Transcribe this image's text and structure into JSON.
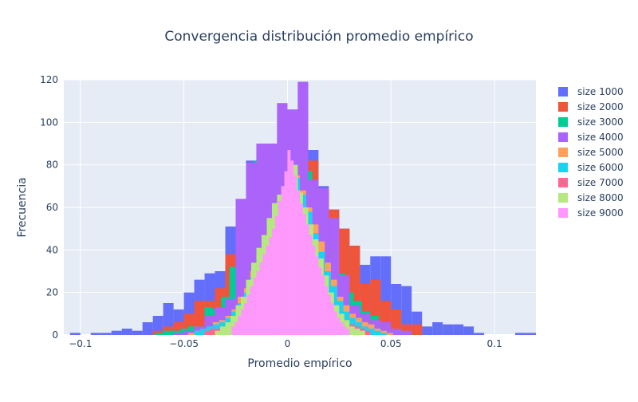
{
  "chart_data": {
    "type": "bar",
    "title": "Convergencia distribución promedio empírico",
    "xlabel": "Promedio empírico",
    "ylabel": "Frecuencia",
    "xlim": [
      -0.108,
      0.12
    ],
    "ylim": [
      0,
      120
    ],
    "x_ticks": [
      -0.1,
      -0.05,
      0,
      0.05,
      0.1
    ],
    "x_tick_labels": [
      "−0.1",
      "−0.05",
      "0",
      "0.05",
      "0.1"
    ],
    "y_ticks": [
      0,
      20,
      40,
      60,
      80,
      100,
      120
    ],
    "grid": true,
    "legend_position": "top-right",
    "bar_mode": "overlay",
    "series": [
      {
        "name": "size 1000",
        "color": "#636efa",
        "bin_width": 0.005,
        "bins": [
          [
            -0.105,
            1
          ],
          [
            -0.1,
            0
          ],
          [
            -0.095,
            1
          ],
          [
            -0.09,
            1
          ],
          [
            -0.085,
            2
          ],
          [
            -0.08,
            3
          ],
          [
            -0.075,
            2
          ],
          [
            -0.07,
            6
          ],
          [
            -0.065,
            9
          ],
          [
            -0.06,
            15
          ],
          [
            -0.055,
            12
          ],
          [
            -0.05,
            20
          ],
          [
            -0.045,
            26
          ],
          [
            -0.04,
            29
          ],
          [
            -0.035,
            30
          ],
          [
            -0.03,
            51
          ],
          [
            -0.025,
            62
          ],
          [
            -0.02,
            82
          ],
          [
            -0.015,
            90
          ],
          [
            -0.01,
            90
          ],
          [
            -0.005,
            109
          ],
          [
            0,
            106
          ],
          [
            0.005,
            119
          ],
          [
            0.01,
            87
          ],
          [
            0.015,
            70
          ],
          [
            0.02,
            59
          ],
          [
            0.025,
            50
          ],
          [
            0.03,
            42
          ],
          [
            0.035,
            33
          ],
          [
            0.04,
            37
          ],
          [
            0.045,
            37
          ],
          [
            0.05,
            24
          ],
          [
            0.055,
            23
          ],
          [
            0.06,
            11
          ],
          [
            0.065,
            4
          ],
          [
            0.07,
            6
          ],
          [
            0.075,
            5
          ],
          [
            0.08,
            5
          ],
          [
            0.085,
            4
          ],
          [
            0.09,
            1
          ],
          [
            0.095,
            0
          ],
          [
            0.1,
            0
          ],
          [
            0.105,
            0
          ],
          [
            0.11,
            1
          ],
          [
            0.115,
            1
          ]
        ]
      },
      {
        "name": "size 2000",
        "color": "#ef553b",
        "bin_width": 0.005,
        "bins": [
          [
            -0.065,
            2
          ],
          [
            -0.06,
            4
          ],
          [
            -0.055,
            6
          ],
          [
            -0.05,
            10
          ],
          [
            -0.045,
            16
          ],
          [
            -0.04,
            16
          ],
          [
            -0.035,
            22
          ],
          [
            -0.03,
            38
          ],
          [
            -0.025,
            56
          ],
          [
            -0.02,
            79
          ],
          [
            -0.015,
            88
          ],
          [
            -0.01,
            90
          ],
          [
            -0.005,
            103
          ],
          [
            0,
            105
          ],
          [
            0.005,
            103
          ],
          [
            0.01,
            82
          ],
          [
            0.015,
            68
          ],
          [
            0.02,
            59
          ],
          [
            0.025,
            50
          ],
          [
            0.03,
            42
          ],
          [
            0.035,
            24
          ],
          [
            0.04,
            26
          ],
          [
            0.045,
            16
          ],
          [
            0.05,
            12
          ],
          [
            0.055,
            5
          ],
          [
            0.06,
            5
          ]
        ]
      },
      {
        "name": "size 3000",
        "color": "#00cc96",
        "bin_width": 0.004,
        "bins": [
          [
            -0.064,
            1
          ],
          [
            -0.06,
            2
          ],
          [
            -0.056,
            2
          ],
          [
            -0.052,
            3
          ],
          [
            -0.048,
            4
          ],
          [
            -0.044,
            4
          ],
          [
            -0.04,
            13
          ],
          [
            -0.036,
            12
          ],
          [
            -0.032,
            18
          ],
          [
            -0.028,
            32
          ],
          [
            -0.024,
            54
          ],
          [
            -0.02,
            64
          ],
          [
            -0.016,
            82
          ],
          [
            -0.012,
            85
          ],
          [
            -0.008,
            90
          ],
          [
            -0.004,
            99
          ],
          [
            0,
            104
          ],
          [
            0.004,
            94
          ],
          [
            0.008,
            77
          ],
          [
            0.012,
            62
          ],
          [
            0.016,
            55
          ],
          [
            0.02,
            40
          ],
          [
            0.024,
            29
          ],
          [
            0.028,
            20
          ],
          [
            0.032,
            16
          ],
          [
            0.036,
            11
          ],
          [
            0.04,
            9
          ],
          [
            0.044,
            6
          ],
          [
            0.048,
            3
          ],
          [
            0.052,
            2
          ]
        ]
      },
      {
        "name": "size 4000",
        "color": "#ab63fa",
        "bin_width": 0.005,
        "bins": [
          [
            -0.055,
            1
          ],
          [
            -0.05,
            2
          ],
          [
            -0.045,
            4
          ],
          [
            -0.04,
            9
          ],
          [
            -0.035,
            13
          ],
          [
            -0.03,
            17
          ],
          [
            -0.025,
            64
          ],
          [
            -0.02,
            81
          ],
          [
            -0.015,
            90
          ],
          [
            -0.01,
            90
          ],
          [
            -0.005,
            109
          ],
          [
            0,
            106
          ],
          [
            0.005,
            119
          ],
          [
            0.01,
            73
          ],
          [
            0.015,
            69
          ],
          [
            0.02,
            55
          ],
          [
            0.025,
            28
          ],
          [
            0.03,
            14
          ],
          [
            0.035,
            10
          ],
          [
            0.04,
            7
          ],
          [
            0.045,
            6
          ],
          [
            0.05,
            3
          ],
          [
            0.055,
            2
          ]
        ]
      },
      {
        "name": "size 5000",
        "color": "#ffa15a",
        "bin_width": 0.003,
        "bins": [
          [
            -0.048,
            1
          ],
          [
            -0.045,
            2
          ],
          [
            -0.042,
            3
          ],
          [
            -0.039,
            3
          ],
          [
            -0.036,
            6
          ],
          [
            -0.033,
            7
          ],
          [
            -0.03,
            9
          ],
          [
            -0.027,
            12
          ],
          [
            -0.024,
            18
          ],
          [
            -0.021,
            22
          ],
          [
            -0.018,
            30
          ],
          [
            -0.015,
            38
          ],
          [
            -0.012,
            46
          ],
          [
            -0.009,
            55
          ],
          [
            -0.006,
            62
          ],
          [
            -0.003,
            70
          ],
          [
            0,
            80
          ],
          [
            0.003,
            75
          ],
          [
            0.006,
            68
          ],
          [
            0.009,
            60
          ],
          [
            0.012,
            52
          ],
          [
            0.015,
            44
          ],
          [
            0.018,
            34
          ],
          [
            0.021,
            26
          ],
          [
            0.024,
            18
          ],
          [
            0.027,
            14
          ],
          [
            0.03,
            10
          ],
          [
            0.033,
            8
          ],
          [
            0.036,
            6
          ],
          [
            0.039,
            5
          ],
          [
            0.042,
            3
          ],
          [
            0.045,
            2
          ],
          [
            0.048,
            1
          ]
        ]
      },
      {
        "name": "size 6000",
        "color": "#19d3f3",
        "bin_width": 0.003,
        "bins": [
          [
            -0.045,
            2
          ],
          [
            -0.042,
            3
          ],
          [
            -0.039,
            4
          ],
          [
            -0.036,
            5
          ],
          [
            -0.033,
            6
          ],
          [
            -0.03,
            8
          ],
          [
            -0.027,
            11
          ],
          [
            -0.024,
            15
          ],
          [
            -0.021,
            20
          ],
          [
            -0.018,
            27
          ],
          [
            -0.015,
            35
          ],
          [
            -0.012,
            44
          ],
          [
            -0.009,
            53
          ],
          [
            -0.006,
            61
          ],
          [
            -0.003,
            70
          ],
          [
            0,
            78
          ],
          [
            0.003,
            74
          ],
          [
            0.006,
            66
          ],
          [
            0.009,
            58
          ],
          [
            0.012,
            48
          ],
          [
            0.015,
            39
          ],
          [
            0.018,
            30
          ],
          [
            0.021,
            23
          ],
          [
            0.024,
            16
          ],
          [
            0.027,
            11
          ],
          [
            0.03,
            8
          ],
          [
            0.033,
            6
          ],
          [
            0.036,
            4
          ],
          [
            0.039,
            3
          ],
          [
            0.042,
            2
          ],
          [
            0.045,
            1
          ]
        ]
      },
      {
        "name": "size 7000",
        "color": "#ff6692",
        "bin_width": 0.0025,
        "bins": [
          [
            -0.04,
            2
          ],
          [
            -0.0375,
            3
          ],
          [
            -0.035,
            3
          ],
          [
            -0.0325,
            4
          ],
          [
            -0.03,
            5
          ],
          [
            -0.0275,
            7
          ],
          [
            -0.025,
            10
          ],
          [
            -0.0225,
            13
          ],
          [
            -0.02,
            17
          ],
          [
            -0.0175,
            22
          ],
          [
            -0.015,
            28
          ],
          [
            -0.0125,
            35
          ],
          [
            -0.01,
            42
          ],
          [
            -0.0075,
            50
          ],
          [
            -0.005,
            58
          ],
          [
            -0.0025,
            65
          ],
          [
            0,
            72
          ],
          [
            0.0025,
            68
          ],
          [
            0.005,
            62
          ],
          [
            0.0075,
            55
          ],
          [
            0.01,
            47
          ],
          [
            0.0125,
            39
          ],
          [
            0.015,
            31
          ],
          [
            0.0175,
            24
          ],
          [
            0.02,
            18
          ],
          [
            0.0225,
            13
          ],
          [
            0.025,
            9
          ],
          [
            0.0275,
            7
          ],
          [
            0.03,
            5
          ],
          [
            0.0325,
            4
          ],
          [
            0.035,
            3
          ],
          [
            0.0375,
            2
          ]
        ]
      },
      {
        "name": "size 8000",
        "color": "#b6e880",
        "bin_width": 0.0025,
        "bins": [
          [
            -0.035,
            2
          ],
          [
            -0.0325,
            4
          ],
          [
            -0.03,
            6
          ],
          [
            -0.0275,
            9
          ],
          [
            -0.025,
            14
          ],
          [
            -0.0225,
            18
          ],
          [
            -0.02,
            26
          ],
          [
            -0.0175,
            34
          ],
          [
            -0.015,
            41
          ],
          [
            -0.0125,
            47
          ],
          [
            -0.01,
            55
          ],
          [
            -0.0075,
            62
          ],
          [
            -0.005,
            66
          ],
          [
            -0.0025,
            68
          ],
          [
            0,
            70
          ],
          [
            0.0025,
            80
          ],
          [
            0.005,
            67
          ],
          [
            0.0075,
            60
          ],
          [
            0.01,
            52
          ],
          [
            0.0125,
            45
          ],
          [
            0.015,
            36
          ],
          [
            0.0175,
            28
          ],
          [
            0.02,
            20
          ],
          [
            0.0225,
            14
          ],
          [
            0.025,
            10
          ],
          [
            0.0275,
            7
          ],
          [
            0.03,
            4
          ],
          [
            0.0325,
            3
          ],
          [
            0.035,
            2
          ]
        ]
      },
      {
        "name": "size 9000",
        "color": "#ff97ff",
        "bin_width": 0.0015,
        "bins": [
          [
            -0.027,
            4
          ],
          [
            -0.0255,
            6
          ],
          [
            -0.024,
            9
          ],
          [
            -0.0225,
            12
          ],
          [
            -0.021,
            15
          ],
          [
            -0.0195,
            19
          ],
          [
            -0.018,
            23
          ],
          [
            -0.0165,
            27
          ],
          [
            -0.015,
            30
          ],
          [
            -0.0135,
            34
          ],
          [
            -0.012,
            38
          ],
          [
            -0.0105,
            42
          ],
          [
            -0.009,
            46
          ],
          [
            -0.0075,
            50
          ],
          [
            -0.006,
            56
          ],
          [
            -0.0045,
            63
          ],
          [
            -0.003,
            70
          ],
          [
            -0.0015,
            77
          ],
          [
            0,
            87
          ],
          [
            0.0015,
            82
          ],
          [
            0.003,
            75
          ],
          [
            0.0045,
            68
          ],
          [
            0.006,
            62
          ],
          [
            0.0075,
            57
          ],
          [
            0.009,
            52
          ],
          [
            0.0105,
            47
          ],
          [
            0.012,
            42
          ],
          [
            0.0135,
            37
          ],
          [
            0.015,
            32
          ],
          [
            0.0165,
            28
          ],
          [
            0.018,
            23
          ],
          [
            0.0195,
            19
          ],
          [
            0.021,
            15
          ],
          [
            0.0225,
            11
          ],
          [
            0.024,
            8
          ],
          [
            0.0255,
            6
          ],
          [
            0.027,
            4
          ],
          [
            0.0285,
            3
          ]
        ]
      }
    ]
  }
}
